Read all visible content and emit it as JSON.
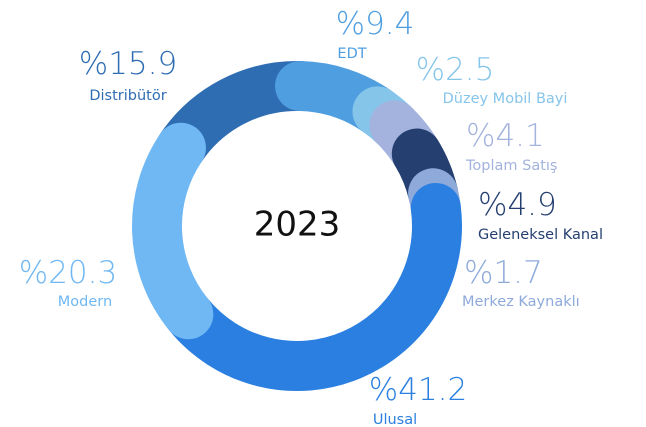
{
  "chart_data": {
    "type": "donut",
    "center_label": "2023",
    "categories": [
      "Distribütör",
      "EDT",
      "Düzey Mobil Bayi",
      "Toplam Satış",
      "Geleneksel Kanal",
      "Merkez Kaynaklı",
      "Ulusal",
      "Modern"
    ],
    "values": [
      15.9,
      9.4,
      2.5,
      4.1,
      4.9,
      1.7,
      41.2,
      20.3
    ],
    "value_labels": [
      "%15.9",
      "%9.4",
      "%2.5",
      "%4.1",
      "%4.9",
      "%1.7",
      "%41.2",
      "%20.3"
    ],
    "colors": [
      "#2f6db3",
      "#4f9ee0",
      "#85c5ea",
      "#a3b3de",
      "#253f70",
      "#8eaadb",
      "#2a7fe0",
      "#6fb8f4"
    ]
  }
}
